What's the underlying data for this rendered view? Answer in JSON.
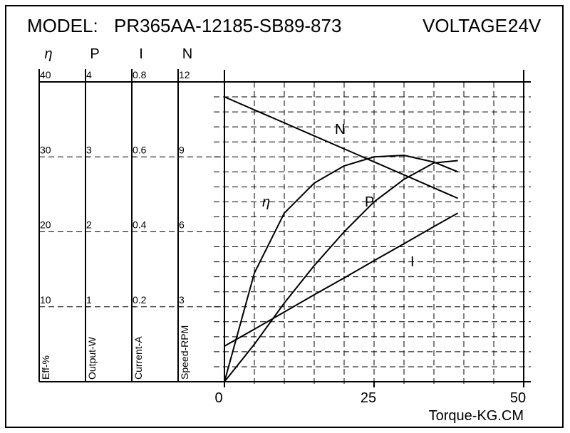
{
  "chart_data": {
    "type": "line",
    "model_label": "MODEL:",
    "model": "PR365AA-12185-SB89-873",
    "voltage_label": "VOLTAGE:",
    "voltage": "24V",
    "x_label": "Torque-KG.CM",
    "xlim": [
      0,
      50
    ],
    "xticks": [
      0,
      25,
      50
    ],
    "x": [
      0,
      5,
      10,
      15,
      20,
      25,
      30,
      35,
      39
    ],
    "axes": [
      {
        "symbol": "η",
        "label": "Eff-%",
        "ylim": [
          0,
          40
        ],
        "yticks": [
          10,
          20,
          30,
          40
        ]
      },
      {
        "symbol": "P",
        "label": "Output-W",
        "ylim": [
          0,
          4
        ],
        "yticks": [
          1,
          2,
          3,
          4
        ]
      },
      {
        "symbol": "I",
        "label": "Current-A",
        "ylim": [
          0,
          0.8
        ],
        "yticks": [
          0.2,
          0.4,
          0.6,
          0.8
        ]
      },
      {
        "symbol": "N",
        "label": "Speed-RPM",
        "ylim": [
          0,
          12
        ],
        "yticks": [
          3,
          6,
          9,
          12
        ]
      }
    ],
    "series": [
      {
        "name": "η",
        "color": "#000000",
        "values": [
          0,
          14.5,
          22.5,
          26.5,
          28.8,
          30.0,
          30.2,
          29.3,
          28.0
        ]
      },
      {
        "name": "P",
        "color": "#000000",
        "values": [
          0,
          0.5,
          1.05,
          1.55,
          2.0,
          2.4,
          2.7,
          2.92,
          2.95
        ]
      },
      {
        "name": "I",
        "color": "#000000",
        "values": [
          0.095,
          0.14,
          0.186,
          0.232,
          0.277,
          0.323,
          0.368,
          0.414,
          0.45
        ]
      },
      {
        "name": "N",
        "color": "#000000",
        "values": [
          11.4,
          10.88,
          10.36,
          9.84,
          9.32,
          8.8,
          8.28,
          7.76,
          7.34
        ]
      }
    ],
    "grid": true
  }
}
